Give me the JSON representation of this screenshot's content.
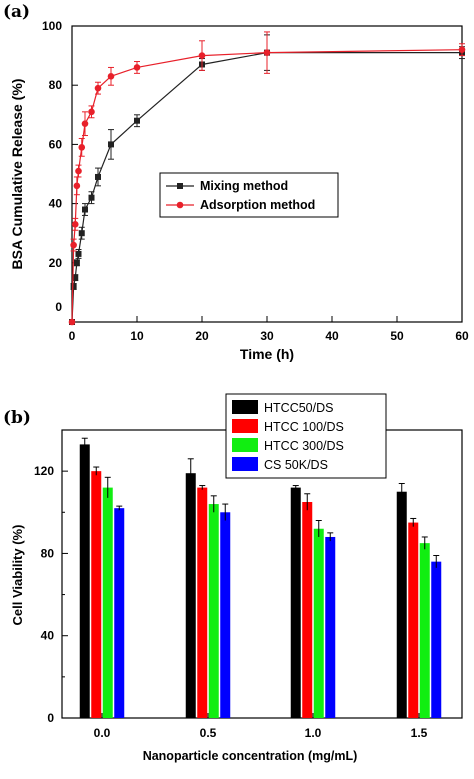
{
  "panel_a_label": "(a)",
  "panel_b_label": "(b)",
  "chart_data": [
    {
      "type": "line",
      "title": "",
      "xlabel": "Time (h)",
      "ylabel": "BSA Cumulative Release (%)",
      "xlim": [
        0,
        60
      ],
      "ylim": [
        0,
        100
      ],
      "xticks": [
        0,
        10,
        20,
        30,
        40,
        50,
        60
      ],
      "yticks": [
        0,
        20,
        40,
        60,
        80,
        100
      ],
      "grid": false,
      "legend_position": "center",
      "series": [
        {
          "name": "Mixing method",
          "color": "#222222",
          "marker": "square",
          "x": [
            0,
            0.25,
            0.5,
            0.75,
            1,
            1.5,
            2,
            3,
            4,
            6,
            10,
            20,
            30,
            60
          ],
          "y": [
            0,
            12,
            15,
            20,
            23,
            30,
            38,
            42,
            49,
            60,
            68,
            87,
            91,
            91
          ],
          "err": [
            0,
            1,
            1,
            1,
            1.5,
            2,
            2,
            2,
            3,
            5,
            2,
            2,
            6,
            2
          ]
        },
        {
          "name": "Adsorption method",
          "color": "#e8202a",
          "marker": "circle",
          "x": [
            0,
            0.25,
            0.5,
            0.75,
            1,
            1.5,
            2,
            3,
            4,
            6,
            10,
            20,
            30,
            60
          ],
          "y": [
            0,
            26,
            33,
            46,
            51,
            59,
            67,
            71,
            79,
            83,
            86,
            90,
            91,
            92
          ],
          "err": [
            0,
            2,
            2,
            3,
            2,
            3,
            4,
            2,
            2,
            3,
            2,
            5,
            7,
            2
          ]
        }
      ]
    },
    {
      "type": "bar",
      "title": "",
      "xlabel": "Nanoparticle concentration (mg/mL)",
      "ylabel": "Cell Viability (%)",
      "categories": [
        "0.0",
        "0.5",
        "1.0",
        "1.5"
      ],
      "ylim": [
        0,
        140
      ],
      "yticks": [
        0,
        40,
        80,
        120
      ],
      "grid": false,
      "legend_position": "top-right",
      "series": [
        {
          "name": "HTCC50/DS",
          "color": "#000000",
          "values": [
            133,
            119,
            112,
            110
          ],
          "err": [
            3,
            7,
            1,
            4
          ]
        },
        {
          "name": "HTCC 100/DS",
          "color": "#ff0000",
          "values": [
            120,
            112,
            105,
            95
          ],
          "err": [
            2,
            1,
            4,
            2
          ]
        },
        {
          "name": "HTCC 300/DS",
          "color": "#11ee11",
          "values": [
            112,
            104,
            92,
            85
          ],
          "err": [
            5,
            4,
            4,
            3
          ]
        },
        {
          "name": "CS 50K/DS",
          "color": "#0000ff",
          "values": [
            102,
            100,
            88,
            76
          ],
          "err": [
            1,
            4,
            2,
            3
          ]
        }
      ]
    }
  ]
}
